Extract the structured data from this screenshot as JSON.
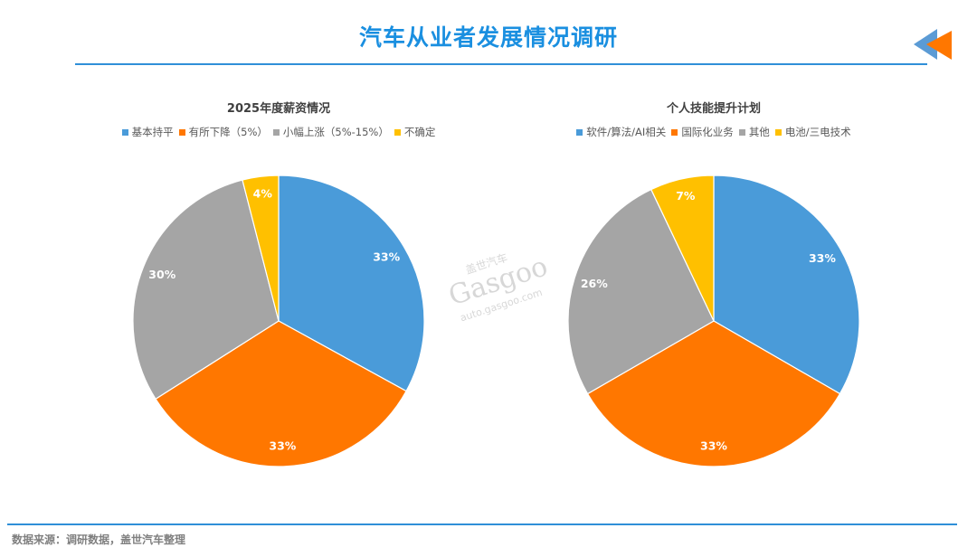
{
  "header": {
    "title": "汽车从业者发展情况调研"
  },
  "footer": {
    "source": "数据来源：调研数据，盖世汽车整理"
  },
  "watermark": {
    "brand_cn": "盖世汽车",
    "brand_en": "Gasgoo",
    "url": "auto.gasgoo.com"
  },
  "colors": {
    "accent": "#1a8fe0",
    "blue": "#4a9bd9",
    "orange": "#ff7700",
    "gray": "#a5a5a5",
    "yellow": "#ffc000"
  },
  "charts": [
    {
      "title": "2025年度薪资情况",
      "legend": [
        {
          "label": "基本持平",
          "color": "#4a9bd9"
        },
        {
          "label": "有所下降（5%）",
          "color": "#ff7700"
        },
        {
          "label": "小幅上涨（5%-15%）",
          "color": "#a5a5a5"
        },
        {
          "label": "不确定",
          "color": "#ffc000"
        }
      ]
    },
    {
      "title": "个人技能提升计划",
      "legend": [
        {
          "label": "软件/算法/AI相关",
          "color": "#4a9bd9"
        },
        {
          "label": "国际化业务",
          "color": "#ff7700"
        },
        {
          "label": "其他",
          "color": "#a5a5a5"
        },
        {
          "label": "电池/三电技术",
          "color": "#ffc000"
        }
      ]
    }
  ],
  "chart_data": [
    {
      "type": "pie",
      "title": "2025年度薪资情况",
      "categories": [
        "基本持平",
        "有所下降（5%）",
        "小幅上涨（5%-15%）",
        "不确定"
      ],
      "values": [
        33,
        33,
        30,
        4
      ],
      "labels": [
        "33%",
        "33%",
        "30%",
        "4%"
      ],
      "colors": [
        "#4a9bd9",
        "#ff7700",
        "#a5a5a5",
        "#ffc000"
      ],
      "legend_position": "top",
      "start_angle": "12 o'clock, clockwise"
    },
    {
      "type": "pie",
      "title": "个人技能提升计划",
      "categories": [
        "软件/算法/AI相关",
        "国际化业务",
        "其他",
        "电池/三电技术"
      ],
      "values": [
        33,
        33,
        26,
        7
      ],
      "labels": [
        "33%",
        "33%",
        "26%",
        "7%"
      ],
      "colors": [
        "#4a9bd9",
        "#ff7700",
        "#a5a5a5",
        "#ffc000"
      ],
      "legend_position": "top",
      "start_angle": "12 o'clock, clockwise"
    }
  ]
}
